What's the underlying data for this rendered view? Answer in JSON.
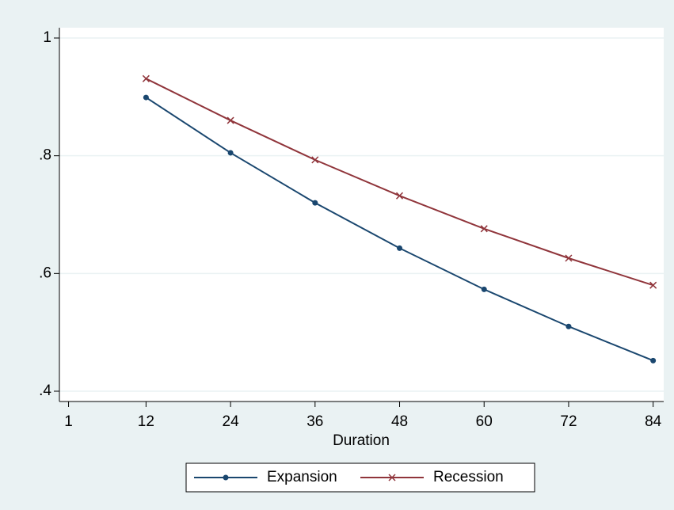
{
  "chart_data": {
    "type": "line",
    "x_label": "Duration",
    "x": [
      12,
      24,
      36,
      48,
      60,
      72,
      84
    ],
    "series": [
      {
        "name": "Expansion",
        "color": "#1a476f",
        "marker": "circle",
        "values": [
          0.899,
          0.805,
          0.72,
          0.643,
          0.573,
          0.51,
          0.452
        ]
      },
      {
        "name": "Recession",
        "color": "#90353b",
        "marker": "x",
        "values": [
          0.931,
          0.86,
          0.793,
          0.732,
          0.676,
          0.626,
          0.58
        ]
      }
    ],
    "xlim": [
      -0.3,
      85.5
    ],
    "xticks": [
      1,
      12,
      24,
      36,
      48,
      60,
      72,
      84
    ],
    "ylim": [
      0.3825,
      1.0175
    ],
    "yticks": [
      {
        "value": 0.4,
        "label": ".4"
      },
      {
        "value": 0.6,
        "label": ".6"
      },
      {
        "value": 0.8,
        "label": ".8"
      },
      1
    ],
    "grid": true,
    "legend": "bottom"
  }
}
